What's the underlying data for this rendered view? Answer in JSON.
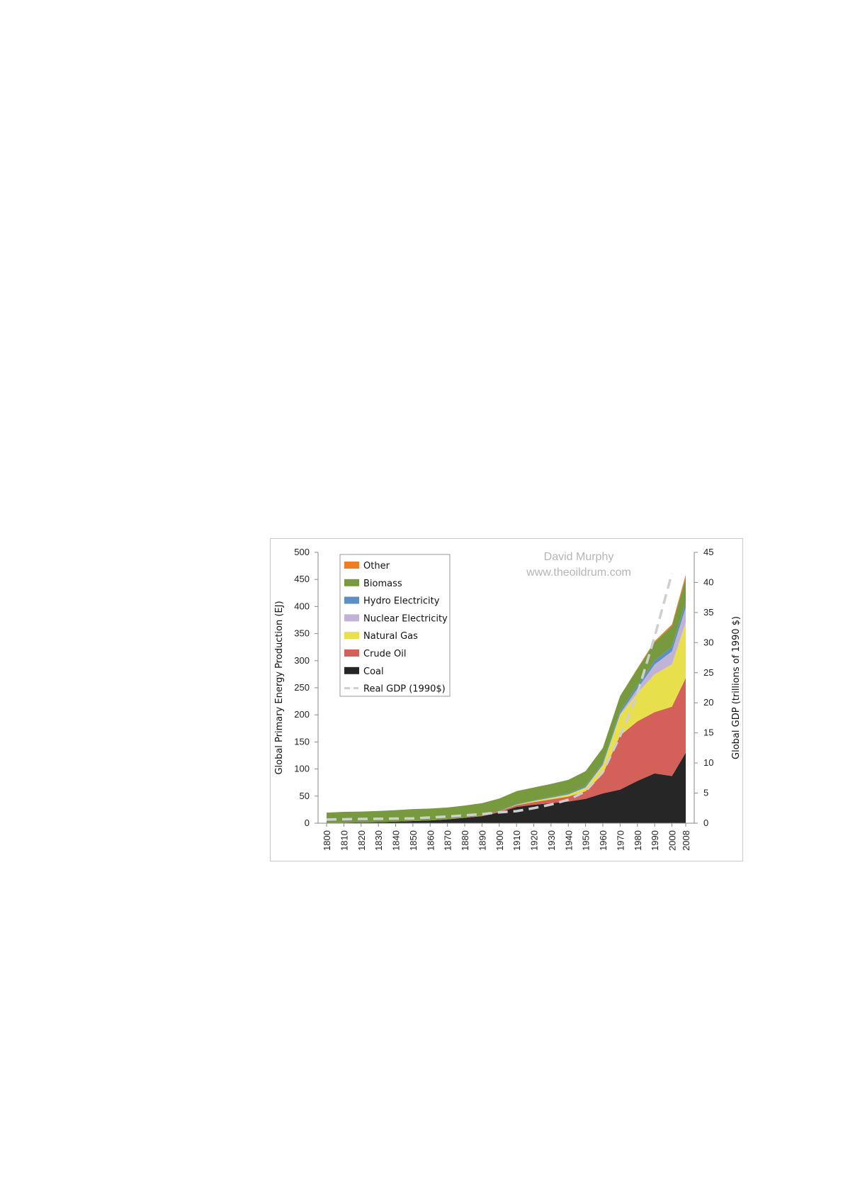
{
  "chart_data": {
    "type": "area",
    "stacked": true,
    "x": [
      1800,
      1810,
      1820,
      1830,
      1840,
      1850,
      1860,
      1870,
      1880,
      1890,
      1900,
      1910,
      1920,
      1930,
      1940,
      1950,
      1960,
      1970,
      1980,
      1990,
      2000,
      2008
    ],
    "x_tick_labels": [
      "1800",
      "1810",
      "1820",
      "1830",
      "1840",
      "1850",
      "1860",
      "1870",
      "1880",
      "1890",
      "1900",
      "1910",
      "1920",
      "1930",
      "1940",
      "1950",
      "1960",
      "1970",
      "1980",
      "1990",
      "2000",
      "2008"
    ],
    "ylabel": "Global Primary Energy Production (EJ)",
    "ylim": [
      0,
      500
    ],
    "yticks": [
      0,
      50,
      100,
      150,
      200,
      250,
      300,
      350,
      400,
      450,
      500
    ],
    "y2label": "Global GDP (trillions of 1990 $)",
    "y2lim": [
      0,
      45
    ],
    "y2ticks": [
      0,
      5,
      10,
      15,
      20,
      25,
      30,
      35,
      40,
      45
    ],
    "watermark": [
      "David Murphy",
      "www.theoildrum.com"
    ],
    "legend_position": "top-left",
    "grid": false,
    "series": [
      {
        "name": "Coal",
        "color": "#262626",
        "values": [
          0.5,
          1,
          1.5,
          2,
          3,
          4,
          5,
          7,
          10,
          13,
          20,
          30,
          34,
          37,
          40,
          45,
          55,
          62,
          78,
          92,
          87,
          130
        ]
      },
      {
        "name": "Crude Oil",
        "color": "#d4605a",
        "values": [
          0,
          0,
          0,
          0,
          0,
          0,
          0,
          0,
          0.5,
          1,
          2,
          3,
          5,
          7,
          9,
          14,
          36,
          100,
          110,
          113,
          128,
          138
        ]
      },
      {
        "name": "Natural Gas",
        "color": "#e8df4c",
        "values": [
          0,
          0,
          0,
          0,
          0,
          0,
          0,
          0,
          0,
          0,
          0,
          1,
          2,
          3,
          4,
          7,
          17,
          38,
          52,
          70,
          78,
          103
        ]
      },
      {
        "name": "Nuclear Electricity",
        "color": "#c0b3d6",
        "values": [
          0,
          0,
          0,
          0,
          0,
          0,
          0,
          0,
          0,
          0,
          0,
          0,
          0,
          0,
          0,
          0,
          0,
          2,
          8,
          18,
          24,
          27
        ]
      },
      {
        "name": "Hydro Electricity",
        "color": "#5d8fc6",
        "values": [
          0,
          0,
          0,
          0,
          0,
          0,
          0,
          0,
          0,
          0,
          0.5,
          1,
          1,
          1.5,
          2,
          3,
          4,
          5,
          6,
          7,
          9,
          10
        ]
      },
      {
        "name": "Biomass",
        "color": "#789a3e",
        "values": [
          19,
          20,
          20,
          20.5,
          21,
          22,
          22,
          22,
          22,
          23,
          23,
          24,
          24,
          24,
          25,
          27,
          27,
          28,
          31,
          34,
          38,
          45
        ]
      },
      {
        "name": "Other",
        "color": "#ef7d21",
        "values": [
          0,
          0,
          0,
          0,
          0,
          0,
          0,
          0,
          0,
          0,
          0,
          0,
          0,
          0,
          0,
          0,
          0,
          0,
          1,
          2,
          3,
          6
        ]
      }
    ],
    "gdp_series": {
      "name": "Real GDP (1990$)",
      "color": "#cfcfcf",
      "axis": "right",
      "x": [
        1800,
        1820,
        1850,
        1870,
        1890,
        1900,
        1910,
        1920,
        1930,
        1940,
        1950,
        1960,
        1970,
        1980,
        1990,
        2000
      ],
      "values": [
        0.6,
        0.7,
        0.8,
        1.1,
        1.5,
        1.8,
        2.0,
        2.5,
        3.1,
        3.9,
        5.3,
        8.5,
        14.5,
        21.5,
        31.0,
        41.5
      ]
    }
  }
}
